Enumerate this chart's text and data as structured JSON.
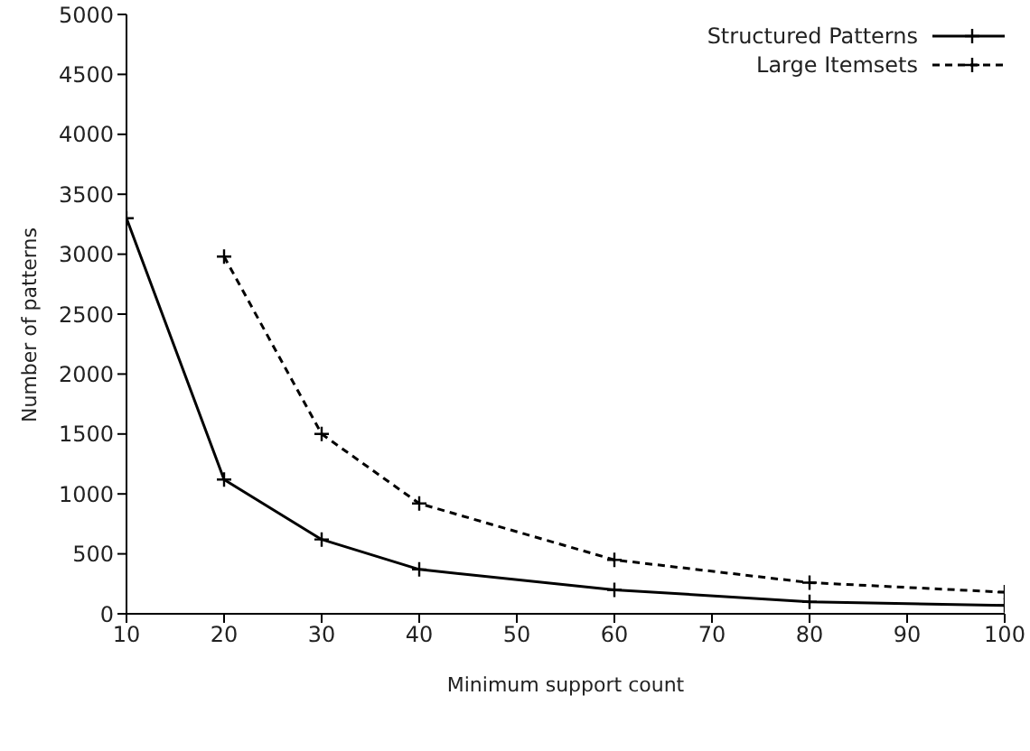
{
  "chart_data": {
    "type": "line",
    "xlabel": "Minimum support count",
    "ylabel": "Number of patterns",
    "x": [
      10,
      20,
      30,
      40,
      60,
      80,
      100
    ],
    "series": [
      {
        "name": "Structured Patterns",
        "color": "#000000",
        "line_style": "solid",
        "marker": "cross",
        "values": [
          3300,
          1120,
          620,
          370,
          200,
          100,
          70
        ]
      },
      {
        "name": "Large Itemsets",
        "color": "#000000",
        "line_style": "dashed",
        "marker": "cross",
        "values": [
          null,
          2980,
          1500,
          920,
          450,
          260,
          180
        ]
      }
    ],
    "xlim": [
      10,
      100
    ],
    "xticks": [
      10,
      20,
      30,
      40,
      50,
      60,
      70,
      80,
      90,
      100
    ],
    "ylim": [
      0,
      5000
    ],
    "yticks": [
      0,
      500,
      1000,
      1500,
      2000,
      2500,
      3000,
      3500,
      4000,
      4500,
      5000
    ],
    "grid": false,
    "legend": "top right"
  }
}
